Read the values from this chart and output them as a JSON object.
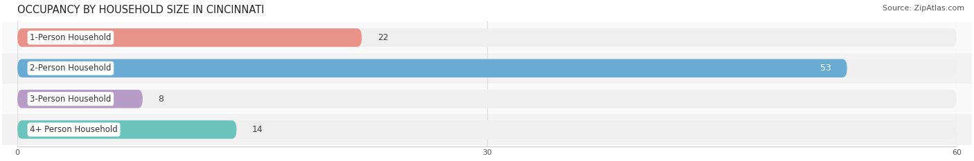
{
  "title": "OCCUPANCY BY HOUSEHOLD SIZE IN CINCINNATI",
  "source": "Source: ZipAtlas.com",
  "categories": [
    "1-Person Household",
    "2-Person Household",
    "3-Person Household",
    "4+ Person Household"
  ],
  "values": [
    22,
    53,
    8,
    14
  ],
  "bar_colors": [
    "#e8928a",
    "#6aabd4",
    "#b89cc8",
    "#6cc4be"
  ],
  "background_color": "#f7f7f7",
  "bar_bg_color": "#efefef",
  "row_bg_colors": [
    "#f9f9f9",
    "#f2f2f2",
    "#f9f9f9",
    "#f2f2f2"
  ],
  "xlim": [
    0,
    60
  ],
  "xticks": [
    0,
    30,
    60
  ],
  "title_fontsize": 10.5,
  "source_fontsize": 8,
  "bar_label_fontsize": 9,
  "category_fontsize": 8.5,
  "bar_height": 0.6,
  "rounding_size": 0.3
}
